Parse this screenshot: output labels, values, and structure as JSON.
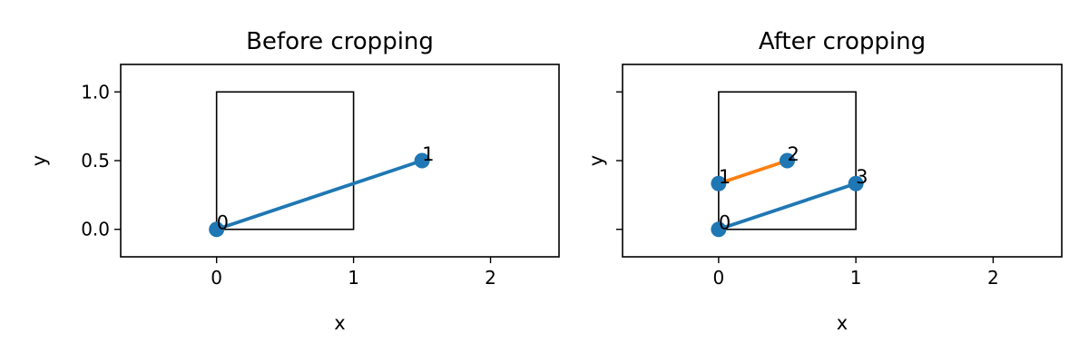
{
  "chart_data": [
    {
      "type": "line",
      "title": "Before cropping",
      "xlabel": "x",
      "ylabel": "y",
      "xlim": [
        -0.7,
        2.5
      ],
      "ylim": [
        -0.2,
        1.2
      ],
      "xticks": [
        "0",
        "1",
        "2"
      ],
      "yticks": [
        "0.0",
        "0.5",
        "1.0"
      ],
      "show_ytick_labels": true,
      "box": {
        "x": [
          0,
          1
        ],
        "y": [
          0,
          1
        ]
      },
      "series": [
        {
          "x": [
            0,
            1.5
          ],
          "y": [
            0,
            0.5
          ],
          "labels": [
            "0",
            "1"
          ],
          "color": "#1f77b4"
        }
      ]
    },
    {
      "type": "line",
      "title": "After cropping",
      "xlabel": "x",
      "ylabel": "y",
      "xlim": [
        -0.7,
        2.5
      ],
      "ylim": [
        -0.2,
        1.2
      ],
      "xticks": [
        "0",
        "1",
        "2"
      ],
      "yticks": [
        "0.0",
        "0.5",
        "1.0"
      ],
      "show_ytick_labels": false,
      "box": {
        "x": [
          0,
          1
        ],
        "y": [
          0,
          1
        ]
      },
      "series": [
        {
          "x": [
            0,
            1
          ],
          "y": [
            0,
            0.3333
          ],
          "labels": [
            "0",
            "3"
          ],
          "color": "#1f77b4"
        },
        {
          "x": [
            0,
            0.5
          ],
          "y": [
            0.3333,
            0.5
          ],
          "labels": [
            "1",
            "2"
          ],
          "color": "#ff7f0e"
        }
      ]
    }
  ],
  "colors": {
    "series_blue": "#1f77b4",
    "series_orange": "#ff7f0e",
    "marker": "#1f77b4"
  }
}
